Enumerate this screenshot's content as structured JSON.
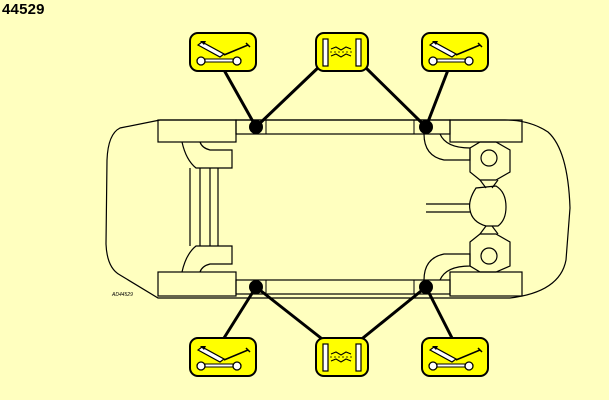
{
  "figure": {
    "number": "44529",
    "code": "AD44529"
  },
  "icons": {
    "jack": "vehicle-jack-icon",
    "lift": "two-post-lift-icon"
  },
  "colors": {
    "background": "#ffffbf",
    "icon_fill": "#ffff00",
    "line": "#000000"
  }
}
